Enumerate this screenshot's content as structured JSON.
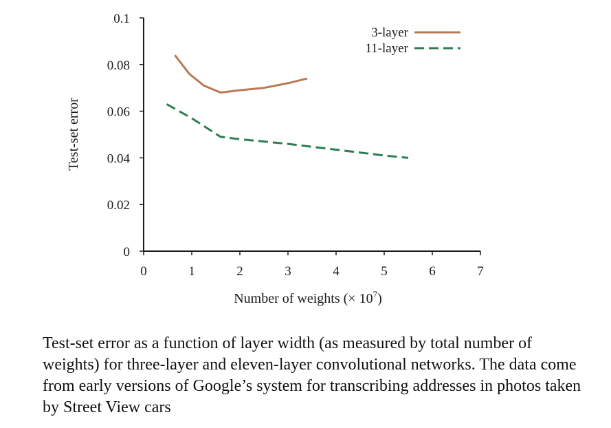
{
  "chart_data": {
    "type": "line",
    "xlabel": "Number of weights (× 10",
    "xlabel_sup": "7",
    "xlabel_end": ")",
    "ylabel": "Test-set error",
    "xlim": [
      0,
      7
    ],
    "ylim": [
      0,
      0.1
    ],
    "x_ticks": [
      0,
      1,
      2,
      3,
      4,
      5,
      6,
      7
    ],
    "x_tick_labels": [
      "0",
      "1",
      "2",
      "3",
      "4",
      "5",
      "6",
      "7"
    ],
    "y_ticks": [
      0,
      0.02,
      0.04,
      0.06,
      0.08,
      0.1
    ],
    "y_tick_labels": [
      "0",
      "0.02",
      "0.04",
      "0.06",
      "0.08",
      "0.1"
    ],
    "grid": false,
    "legend_position": "top-right",
    "series": [
      {
        "name": "3-layer",
        "color": "#b87a56",
        "dash": "solid",
        "x": [
          0.65,
          0.95,
          1.25,
          1.6,
          2.0,
          2.5,
          3.0,
          3.4
        ],
        "y": [
          0.084,
          0.076,
          0.071,
          0.068,
          0.069,
          0.07,
          0.072,
          0.074
        ]
      },
      {
        "name": "11-layer",
        "color": "#2e7d52",
        "dash": "dashed",
        "x": [
          0.48,
          1.0,
          1.6,
          2.0,
          3.0,
          4.0,
          5.0,
          5.5
        ],
        "y": [
          0.063,
          0.057,
          0.049,
          0.048,
          0.046,
          0.0435,
          0.041,
          0.04
        ]
      }
    ]
  },
  "caption": "Test-set error as a function of layer width (as measured by total number of weights) for three-layer and eleven-layer convolutional networks. The data come from early versions of Google’s system for transcribing addresses in photos taken by Street View cars"
}
